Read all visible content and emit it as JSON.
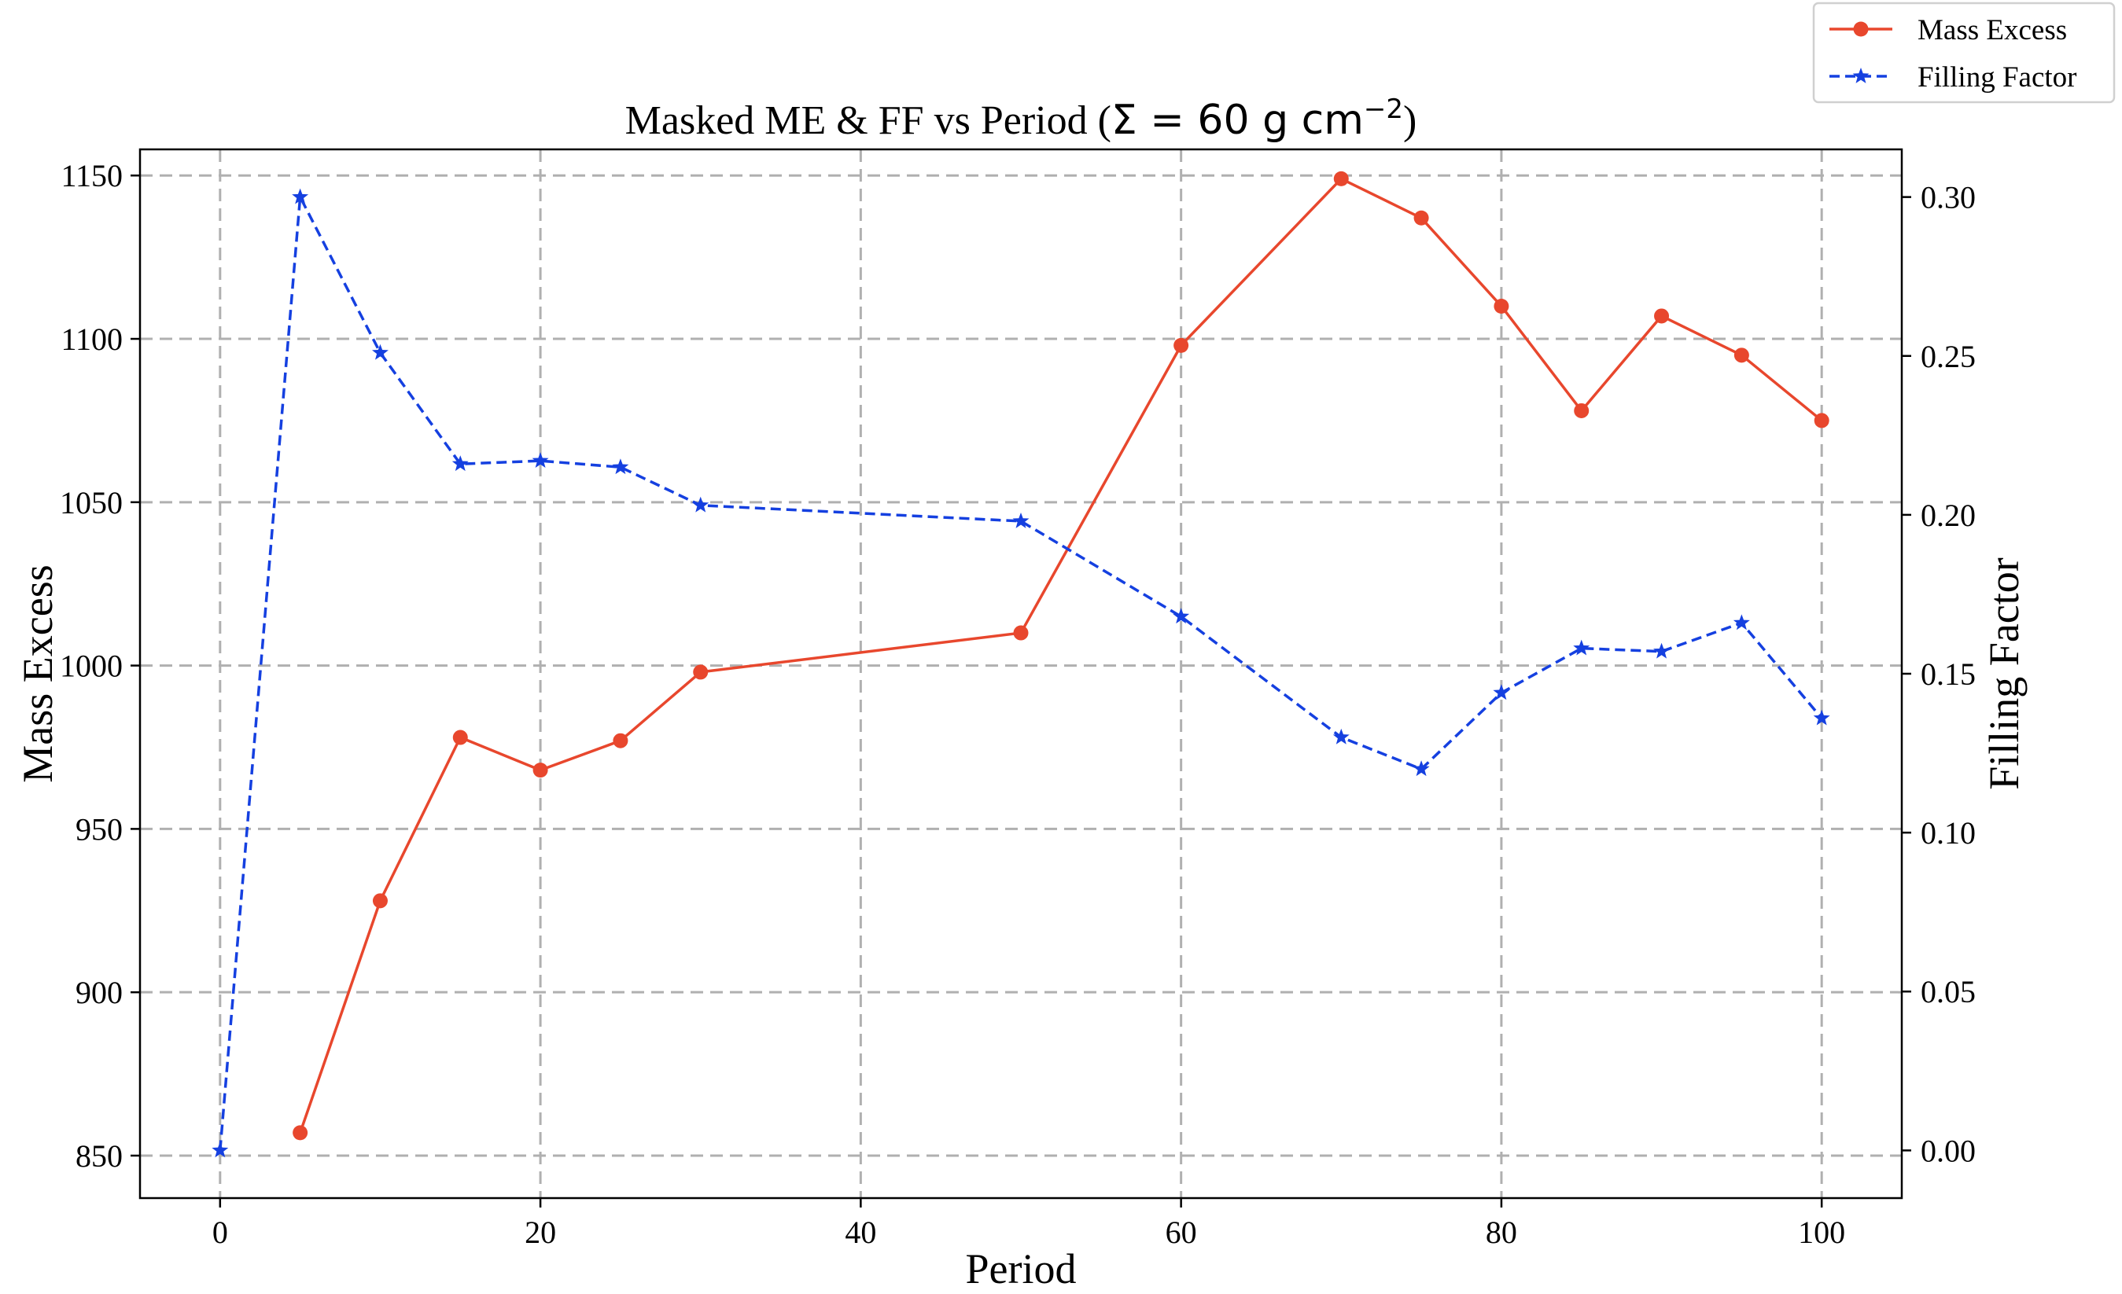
{
  "chart_data": {
    "type": "line",
    "title": "Masked ME & FF vs Period (",
    "title_math": "Σ = 60 g cm",
    "title_exp": "−2",
    "title_close": ")",
    "xlabel": "Period",
    "ylabel_left": "Mass Excess",
    "ylabel_right": "Filling Factor",
    "xlim": [
      -5,
      105
    ],
    "ylim_left": [
      837,
      1158
    ],
    "ylim_right": [
      -0.015,
      0.315
    ],
    "x_ticks": [
      0,
      20,
      40,
      60,
      80,
      100
    ],
    "x_tick_labels": [
      "0",
      "20",
      "40",
      "60",
      "80",
      "100"
    ],
    "y_left_ticks": [
      850,
      900,
      950,
      1000,
      1050,
      1100,
      1150
    ],
    "y_left_tick_labels": [
      "850",
      "900",
      "950",
      "1000",
      "1050",
      "1100",
      "1150"
    ],
    "y_right_ticks": [
      0.0,
      0.05,
      0.1,
      0.15,
      0.2,
      0.25,
      0.3
    ],
    "y_right_tick_labels": [
      "0.00",
      "0.05",
      "0.10",
      "0.15",
      "0.20",
      "0.25",
      "0.30"
    ],
    "grid": true,
    "legend_position": "top-right, outside plot",
    "series": [
      {
        "name": "Mass Excess",
        "axis": "left",
        "color": "#e8472d",
        "marker": "circle",
        "linestyle": "solid",
        "x": [
          5,
          10,
          15,
          20,
          25,
          30,
          50,
          60,
          70,
          75,
          80,
          85,
          90,
          95,
          100
        ],
        "values": [
          857,
          928,
          978,
          968,
          977,
          998,
          1010,
          1098,
          1149,
          1137,
          1110,
          1078,
          1107,
          1095,
          1075
        ]
      },
      {
        "name": "Filling Factor",
        "axis": "right",
        "color": "#1540e0",
        "marker": "star",
        "linestyle": "dashed",
        "x": [
          0,
          5,
          10,
          15,
          20,
          25,
          30,
          50,
          60,
          70,
          75,
          80,
          85,
          90,
          95,
          100
        ],
        "values": [
          0.0,
          0.3,
          0.251,
          0.216,
          0.217,
          0.215,
          0.203,
          0.198,
          0.168,
          0.13,
          0.12,
          0.144,
          0.158,
          0.157,
          0.166,
          0.136
        ]
      }
    ]
  }
}
